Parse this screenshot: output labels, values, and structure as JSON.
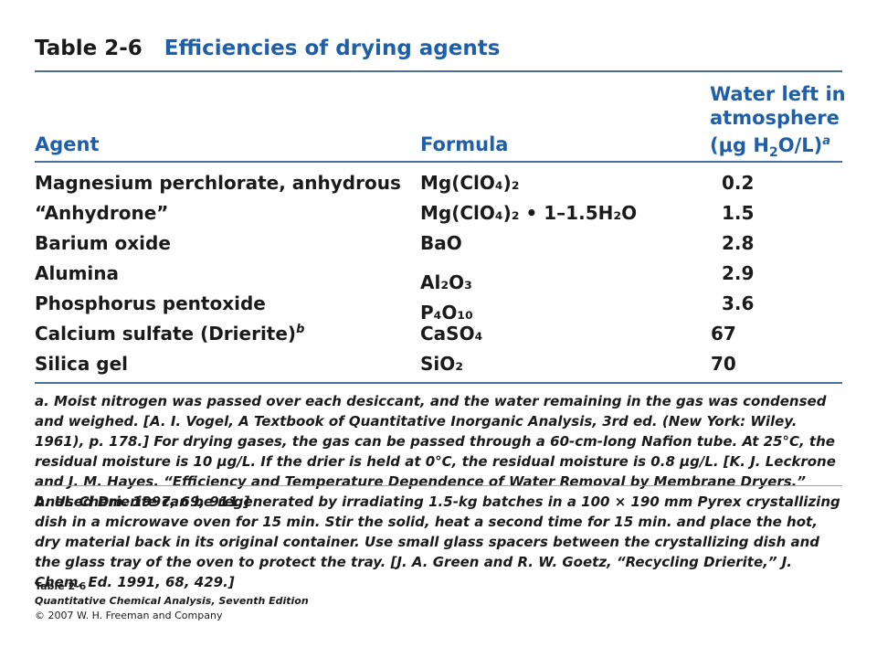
{
  "title": {
    "number": "Table 2-6",
    "text": "Efficiencies of drying agents"
  },
  "headers": {
    "agent": "Agent",
    "formula": "Formula",
    "water_line1": "Water left in",
    "water_line2": "atmosphere",
    "water_line3_pre": "(μg H",
    "water_line3_sub": "2",
    "water_line3_post": "O/L)",
    "water_line3_sup": "a"
  },
  "rows": [
    {
      "agent": "Magnesium perchlorate, anhydrous",
      "formula": "Mg(ClO₄)₂",
      "water": "0.2"
    },
    {
      "agent": "“Anhydrone”",
      "formula": "Mg(ClO₄)₂ • 1–1.5H₂O",
      "water": "1.5"
    },
    {
      "agent": "Barium oxide",
      "formula": "BaO",
      "water": "2.8"
    },
    {
      "agent": "Alumina",
      "formula": "Al₂O₃",
      "water": "2.9"
    },
    {
      "agent": "Phosphorus pentoxide",
      "formula": "P₄O₁₀",
      "water": "3.6"
    },
    {
      "agent": "Calcium sulfate (Drierite)",
      "agent_sup": "b",
      "formula": "CaSO₄",
      "water": "67"
    },
    {
      "agent": "Silica gel",
      "formula": "SiO₂",
      "water": "70"
    }
  ],
  "notes": {
    "a": "a. Moist nitrogen was passed over each desiccant, and the water remaining in the gas was condensed and weighed. [A. I. Vogel, A Textbook of Quantitative Inorganic Analysis, 3rd ed. (New York: Wiley. 1961), p. 178.] For drying gases, the gas can be passed through a 60-cm-long Nafion tube. At 25°C, the residual moisture is 10 μg/L. If the drier is held at 0°C, the residual moisture is 0.8 μg/L. [K. J. Leckrone and J. M. Hayes. “Efficiency and Temperature Dependence of Water Removal by Membrane Dryers.” Anal. Chem. 1997, 69, 911.]",
    "b": "b. Used Drierite can be regenerated by irradiating 1.5-kg batches in a 100 × 190 mm Pyrex crystallizing dish in a microwave oven for 15 min. Stir the solid, heat a second time for 15 min. and place the hot, dry material back in its original container. Use small glass spacers between the crystallizing dish and the glass tray of the oven to protect the tray. [J. A. Green and R. W. Goetz, “Recycling Drierite,” J. Chem. Ed. 1991, 68, 429.]"
  },
  "caption": {
    "line1": "Table 2-6",
    "line2": "Quantitative Chemical Analysis, Seventh Edition",
    "line3": "© 2007 W. H. Freeman and Company"
  }
}
